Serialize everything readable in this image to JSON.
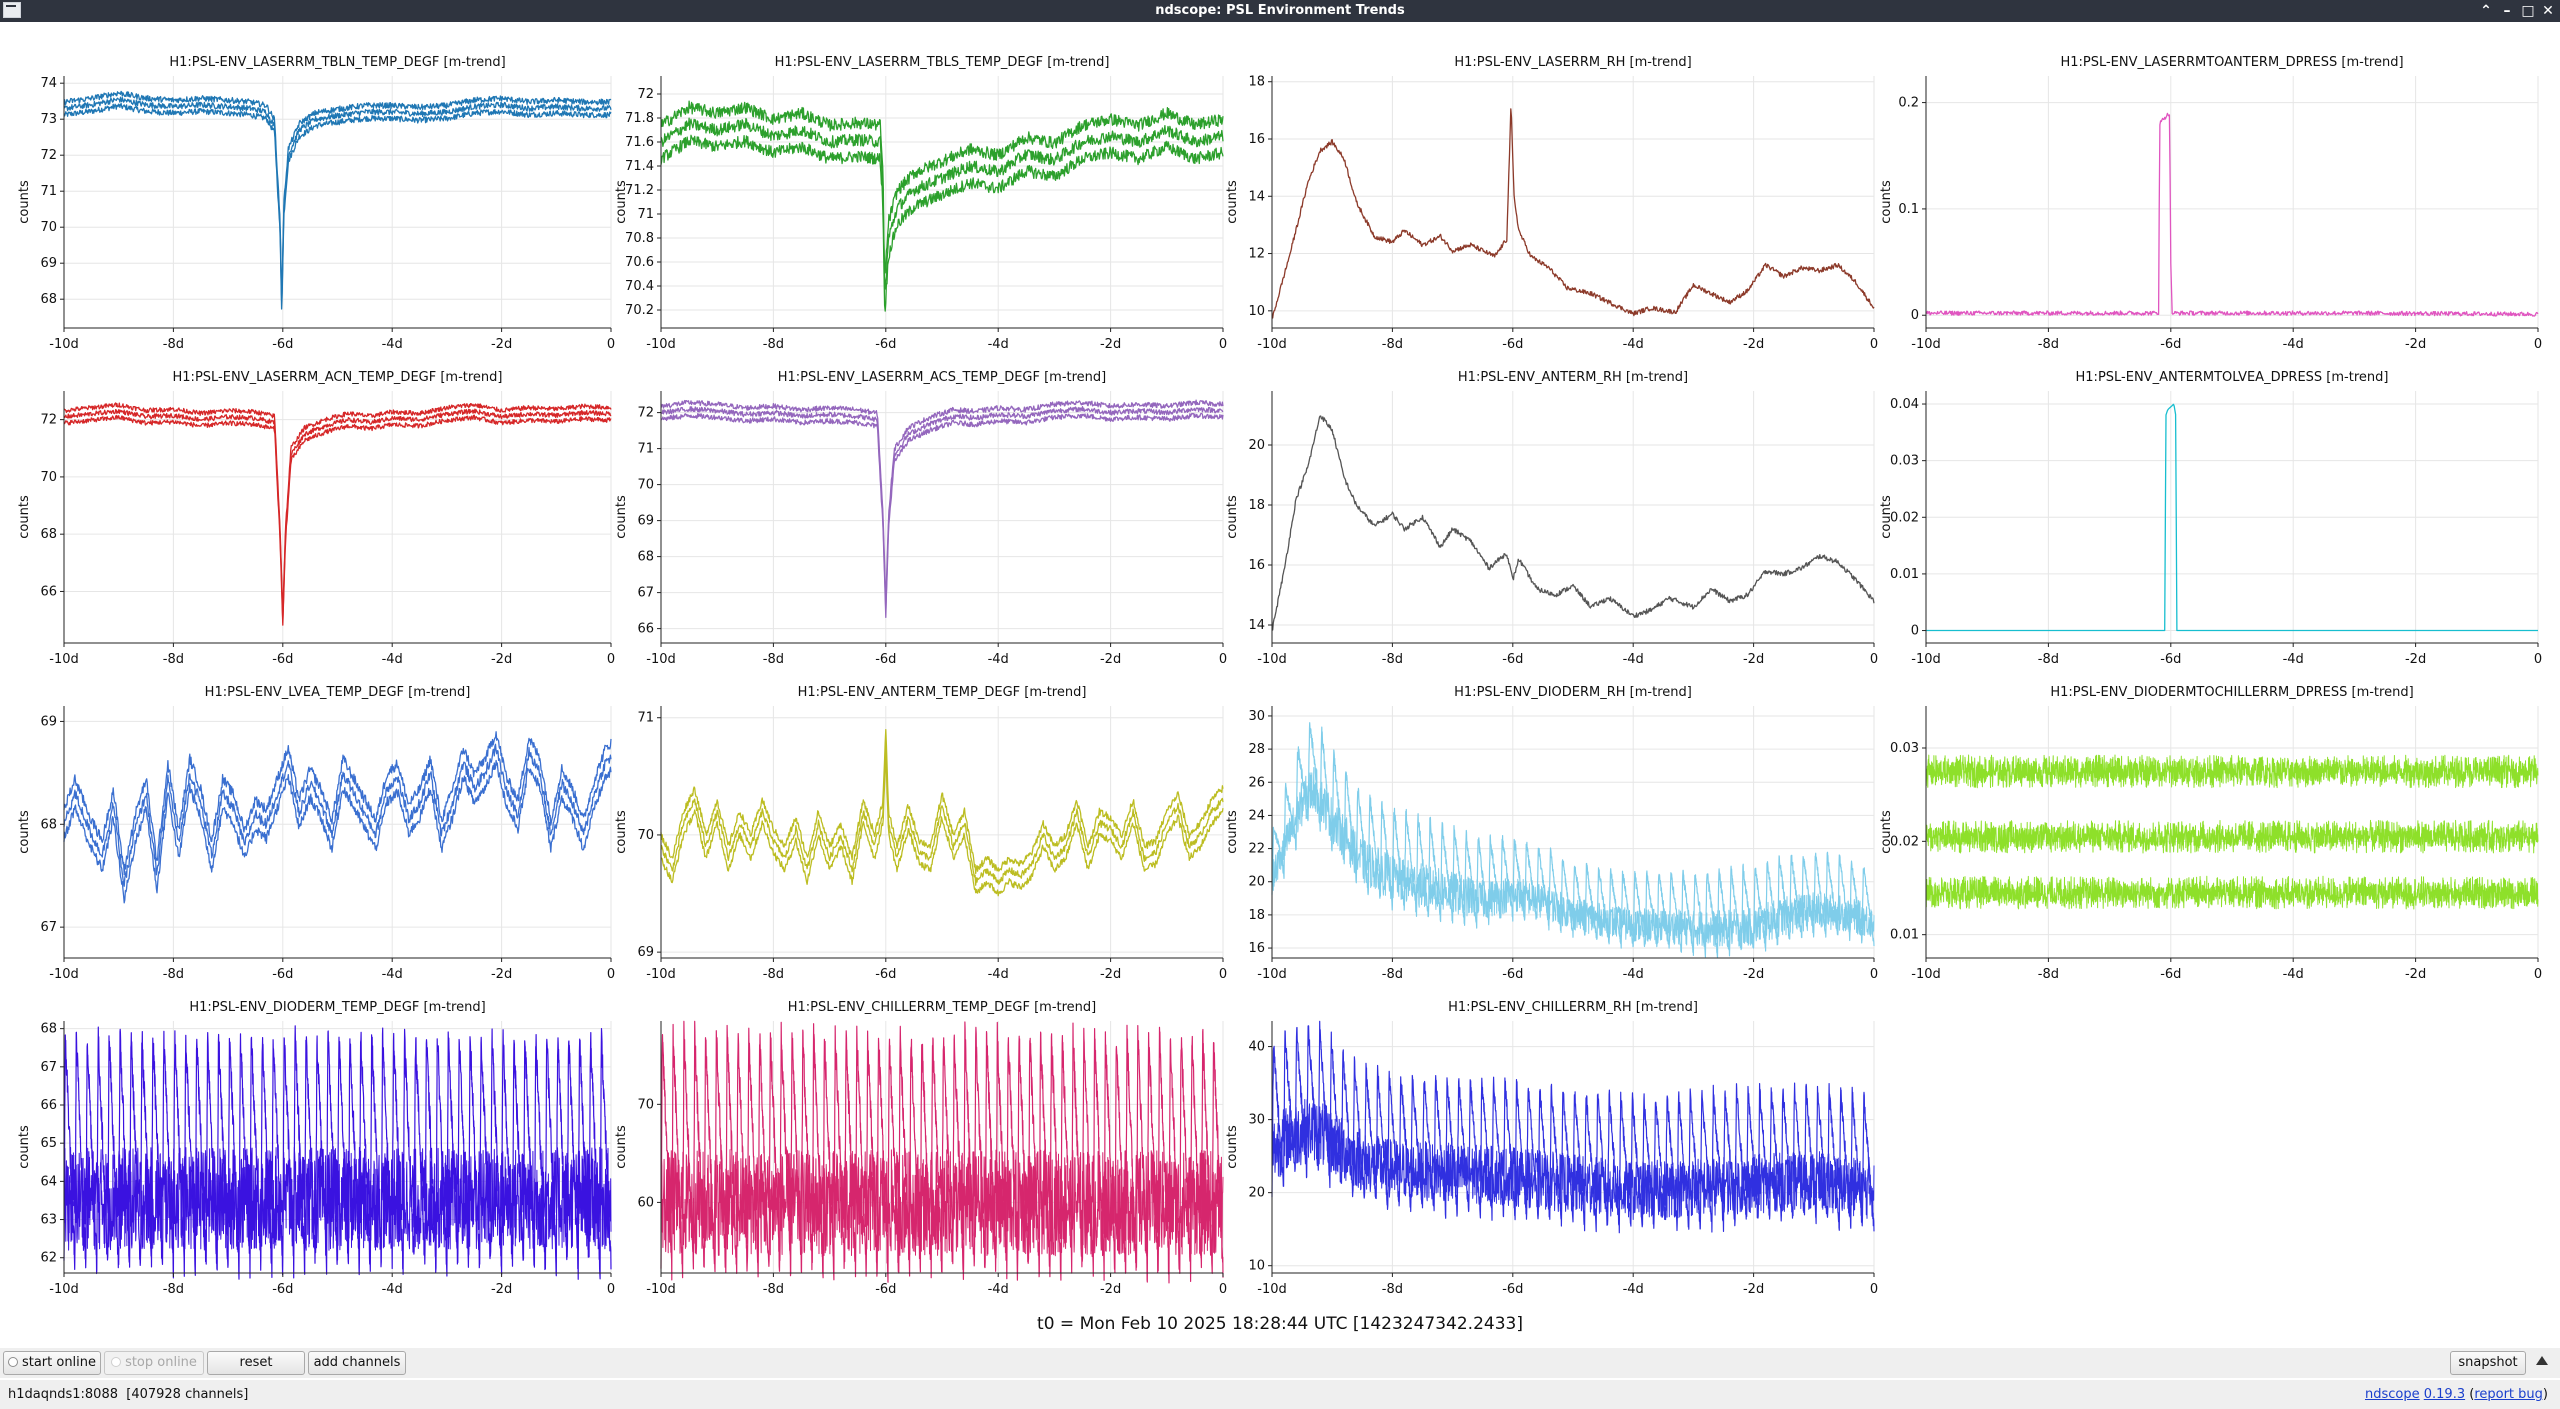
{
  "window": {
    "title": "ndscope: PSL Environment Trends"
  },
  "window_controls": {
    "menu": "⌃",
    "minimize": "–",
    "maximize": "□",
    "close": "✕"
  },
  "t0_label": "t0 = Mon Feb 10 2025 18:28:44 UTC [1423247342.2433]",
  "toolbar": {
    "start_online": "start online",
    "stop_online": "stop online",
    "reset": "reset",
    "add_channels": "add channels",
    "snapshot": "snapshot"
  },
  "status": {
    "server": "h1daqnds1:8088",
    "channels": "[407928 channels]",
    "app_name": "ndscope",
    "version": "0.19.3",
    "report_bug": "report bug",
    "open_paren": "(",
    "close_paren": ")"
  },
  "icons": {
    "app": "ndscope-window-icon",
    "toggle": "triangle-up-icon"
  },
  "chart_data": [
    {
      "type": "line",
      "title": "H1:PSL-ENV_LASERRM_TBLN_TEMP_DEGF [m-trend]",
      "ylabel": "counts",
      "color": "#1f77b4",
      "band": "triple",
      "ylim": [
        67.2,
        74.2
      ],
      "yticks": [
        68,
        69,
        70,
        71,
        72,
        73,
        74
      ],
      "xlim": [
        -10,
        0
      ],
      "x": [
        -10,
        -9.5,
        -9,
        -8.5,
        -8,
        -7.5,
        -7,
        -6.6,
        -6.3,
        -6.15,
        -6.05,
        -6.02,
        -5.98,
        -5.9,
        -5.7,
        -5.4,
        -5,
        -4.5,
        -4,
        -3.5,
        -3,
        -2.5,
        -2,
        -1.5,
        -1,
        -0.5,
        0
      ],
      "y": [
        73.3,
        73.4,
        73.55,
        73.4,
        73.35,
        73.4,
        73.35,
        73.3,
        73.2,
        72.8,
        70,
        67.8,
        70.5,
        72,
        72.7,
        73,
        73.1,
        73.2,
        73.2,
        73.15,
        73.2,
        73.35,
        73.4,
        73.3,
        73.35,
        73.3,
        73.3
      ],
      "noise": 0.08,
      "spread": 0.18
    },
    {
      "type": "line",
      "title": "H1:PSL-ENV_LASERRM_TBLS_TEMP_DEGF [m-trend]",
      "ylabel": "counts",
      "color": "#2ca02c",
      "band": "triple",
      "ylim": [
        70.05,
        72.15
      ],
      "yticks": [
        70.2,
        70.4,
        70.6,
        70.8,
        71,
        71.2,
        71.4,
        71.6,
        71.8,
        72
      ],
      "yformat": "trim",
      "xlim": [
        -10,
        0
      ],
      "x": [
        -10,
        -9.5,
        -9,
        -8.5,
        -8,
        -7.5,
        -7,
        -6.5,
        -6.1,
        -6.05,
        -6.02,
        -5.95,
        -5.8,
        -5.5,
        -5,
        -4.5,
        -4,
        -3.5,
        -3,
        -2.5,
        -2,
        -1.5,
        -1,
        -0.5,
        0
      ],
      "y": [
        71.6,
        71.75,
        71.7,
        71.75,
        71.65,
        71.7,
        71.6,
        71.62,
        71.6,
        71.2,
        70.3,
        70.8,
        71.05,
        71.2,
        71.3,
        71.4,
        71.35,
        71.5,
        71.45,
        71.6,
        71.65,
        71.6,
        71.7,
        71.6,
        71.65
      ],
      "noise": 0.05,
      "spread": 0.14
    },
    {
      "type": "line",
      "title": "H1:PSL-ENV_LASERRM_RH [m-trend]",
      "ylabel": "counts",
      "color": "#8c3a2a",
      "band": "single",
      "ylim": [
        9.4,
        18.2
      ],
      "yticks": [
        10,
        12,
        14,
        16,
        18
      ],
      "xlim": [
        -10,
        0
      ],
      "x": [
        -10,
        -9.7,
        -9.4,
        -9.2,
        -9,
        -8.8,
        -8.6,
        -8.3,
        -8,
        -7.8,
        -7.5,
        -7.2,
        -7,
        -6.7,
        -6.3,
        -6.1,
        -6.03,
        -5.98,
        -5.9,
        -5.7,
        -5.4,
        -5.1,
        -4.7,
        -4.3,
        -4,
        -3.7,
        -3.3,
        -3,
        -2.7,
        -2.4,
        -2.1,
        -1.8,
        -1.5,
        -1.2,
        -0.9,
        -0.6,
        -0.3,
        0
      ],
      "y": [
        9.7,
        12,
        14.5,
        15.6,
        15.9,
        15.3,
        13.8,
        12.6,
        12.4,
        12.8,
        12.3,
        12.6,
        12.1,
        12.3,
        11.9,
        12.5,
        17.2,
        14,
        12.8,
        11.9,
        11.5,
        10.8,
        10.6,
        10.2,
        9.9,
        10.1,
        9.95,
        10.9,
        10.6,
        10.3,
        10.7,
        11.6,
        11.2,
        11.5,
        11.4,
        11.6,
        11,
        10.1
      ],
      "noise": 0.08,
      "spread": 0.1
    },
    {
      "type": "line",
      "title": "H1:PSL-ENV_LASERRMTOANTERM_DPRESS [m-trend]",
      "ylabel": "counts",
      "color": "#e055c0",
      "band": "single",
      "ylim": [
        -0.012,
        0.225
      ],
      "yticks": [
        0,
        0.1,
        0.2
      ],
      "xlim": [
        -10,
        0
      ],
      "x": [
        -10,
        -6.2,
        -6.18,
        -6.12,
        -6.02,
        -6.0,
        -5.98,
        -3,
        0
      ],
      "y": [
        0.002,
        0.002,
        0.18,
        0.185,
        0.19,
        0.05,
        0.002,
        0.002,
        0.001
      ],
      "noise": 0.002,
      "spread": 0.0
    },
    {
      "type": "line",
      "title": "H1:PSL-ENV_LASERRM_ACN_TEMP_DEGF [m-trend]",
      "ylabel": "counts",
      "color": "#d62728",
      "band": "triple",
      "ylim": [
        64.2,
        73
      ],
      "yticks": [
        66,
        68,
        70,
        72
      ],
      "xlim": [
        -10,
        0
      ],
      "x": [
        -10,
        -9.5,
        -9,
        -8.5,
        -8,
        -7.5,
        -7,
        -6.5,
        -6.15,
        -6.05,
        -6.0,
        -5.95,
        -5.85,
        -5.6,
        -5.2,
        -4.8,
        -4.4,
        -4,
        -3.5,
        -3,
        -2.5,
        -2,
        -1.5,
        -1,
        -0.5,
        0
      ],
      "y": [
        72.1,
        72.2,
        72.3,
        72.1,
        72.15,
        72,
        72.1,
        72.05,
        71.9,
        68,
        65,
        68,
        70.8,
        71.5,
        71.8,
        72,
        71.9,
        72.05,
        72,
        72.2,
        72.3,
        72.1,
        72.2,
        72.15,
        72.25,
        72.2
      ],
      "noise": 0.08,
      "spread": 0.22
    },
    {
      "type": "line",
      "title": "H1:PSL-ENV_LASERRM_ACS_TEMP_DEGF [m-trend]",
      "ylabel": "counts",
      "color": "#9467bd",
      "band": "triple",
      "ylim": [
        65.6,
        72.6
      ],
      "yticks": [
        66,
        67,
        68,
        69,
        70,
        71,
        72
      ],
      "xlim": [
        -10,
        0
      ],
      "x": [
        -10,
        -9.5,
        -9,
        -8.5,
        -8,
        -7.5,
        -7,
        -6.5,
        -6.15,
        -6.05,
        -6.0,
        -5.95,
        -5.85,
        -5.6,
        -5.2,
        -4.8,
        -4.4,
        -4,
        -3.5,
        -3,
        -2.5,
        -2,
        -1.5,
        -1,
        -0.5,
        0
      ],
      "y": [
        72,
        72.1,
        72.05,
        71.95,
        72,
        71.9,
        71.95,
        71.9,
        71.8,
        69,
        66.5,
        69,
        70.8,
        71.4,
        71.7,
        71.9,
        71.85,
        71.95,
        71.9,
        72.05,
        72.1,
        72,
        72.05,
        72,
        72.1,
        72.05
      ],
      "noise": 0.07,
      "spread": 0.18
    },
    {
      "type": "line",
      "title": "H1:PSL-ENV_ANTERM_RH [m-trend]",
      "ylabel": "counts",
      "color": "#555555",
      "band": "single",
      "ylim": [
        13.4,
        21.8
      ],
      "yticks": [
        14,
        16,
        18,
        20
      ],
      "xlim": [
        -10,
        0
      ],
      "x": [
        -10,
        -9.8,
        -9.6,
        -9.4,
        -9.2,
        -9,
        -8.8,
        -8.6,
        -8.3,
        -8,
        -7.8,
        -7.5,
        -7.2,
        -7,
        -6.7,
        -6.4,
        -6.1,
        -6,
        -5.9,
        -5.6,
        -5.3,
        -5,
        -4.7,
        -4.4,
        -4,
        -3.7,
        -3.4,
        -3,
        -2.7,
        -2.4,
        -2.1,
        -1.8,
        -1.5,
        -1.2,
        -0.9,
        -0.6,
        -0.3,
        0
      ],
      "y": [
        13.8,
        15.8,
        18.2,
        19.3,
        21,
        20.5,
        18.9,
        18,
        17.3,
        17.7,
        17.2,
        17.6,
        16.6,
        17.2,
        16.8,
        15.9,
        16.4,
        15.5,
        16.2,
        15.2,
        15,
        15.3,
        14.6,
        14.9,
        14.3,
        14.5,
        14.9,
        14.6,
        15.2,
        14.8,
        15,
        15.8,
        15.7,
        15.9,
        16.3,
        16.1,
        15.5,
        14.8
      ],
      "noise": 0.08,
      "spread": 0.12
    },
    {
      "type": "line",
      "title": "H1:PSL-ENV_ANTERMTOLVEA_DPRESS [m-trend]",
      "ylabel": "counts",
      "color": "#17becf",
      "band": "single",
      "ylim": [
        -0.0022,
        0.0423
      ],
      "yticks": [
        0,
        0.01,
        0.02,
        0.03,
        0.04
      ],
      "xlim": [
        -10,
        0
      ],
      "x": [
        -10,
        -6.1,
        -6.08,
        -6.05,
        -5.95,
        -5.92,
        -5.9,
        0
      ],
      "y": [
        0,
        0,
        0.038,
        0.039,
        0.04,
        0.038,
        0,
        0
      ],
      "noise": 0.0,
      "spread": 0.0
    },
    {
      "type": "line",
      "title": "H1:PSL-ENV_LVEA_TEMP_DEGF [m-trend]",
      "ylabel": "counts",
      "color": "#3a6fd0",
      "band": "triple",
      "ylim": [
        66.7,
        69.15
      ],
      "yticks": [
        67,
        68,
        69
      ],
      "xlim": [
        -10,
        0
      ],
      "x": [
        -10,
        -9.8,
        -9.5,
        -9.3,
        -9.1,
        -8.9,
        -8.7,
        -8.5,
        -8.3,
        -8.1,
        -7.9,
        -7.7,
        -7.5,
        -7.3,
        -7.1,
        -6.9,
        -6.7,
        -6.5,
        -6.3,
        -6.1,
        -5.9,
        -5.7,
        -5.5,
        -5.3,
        -5.1,
        -4.9,
        -4.7,
        -4.5,
        -4.3,
        -4.1,
        -3.9,
        -3.7,
        -3.5,
        -3.3,
        -3.1,
        -2.9,
        -2.7,
        -2.5,
        -2.3,
        -2.1,
        -1.9,
        -1.7,
        -1.5,
        -1.3,
        -1.1,
        -0.9,
        -0.7,
        -0.5,
        -0.3,
        -0.1,
        0
      ],
      "y": [
        68,
        68.3,
        67.9,
        67.7,
        68.2,
        67.4,
        67.95,
        68.3,
        67.5,
        68.45,
        67.8,
        68.5,
        68.2,
        67.7,
        68.3,
        68.15,
        67.8,
        68.1,
        68,
        68.3,
        68.6,
        68.1,
        68.4,
        68.2,
        67.9,
        68.5,
        68.3,
        68.1,
        67.9,
        68.35,
        68.45,
        68.05,
        68.2,
        68.5,
        67.9,
        68.2,
        68.6,
        68.35,
        68.5,
        68.75,
        68.3,
        68.1,
        68.7,
        68.5,
        67.9,
        68.4,
        68.2,
        67.9,
        68.3,
        68.6,
        68.65
      ],
      "noise": 0.05,
      "spread": 0.14
    },
    {
      "type": "line",
      "title": "H1:PSL-ENV_ANTERM_TEMP_DEGF [m-trend]",
      "ylabel": "counts",
      "color": "#bcbd22",
      "band": "triple",
      "ylim": [
        68.95,
        71.1
      ],
      "yticks": [
        69,
        70,
        71
      ],
      "xlim": [
        -10,
        0
      ],
      "x": [
        -10,
        -9.8,
        -9.6,
        -9.4,
        -9.2,
        -9,
        -8.8,
        -8.6,
        -8.4,
        -8.2,
        -8,
        -7.8,
        -7.6,
        -7.4,
        -7.2,
        -7,
        -6.8,
        -6.6,
        -6.4,
        -6.2,
        -6.05,
        -6.0,
        -5.95,
        -5.8,
        -5.6,
        -5.4,
        -5.2,
        -5,
        -4.8,
        -4.6,
        -4.4,
        -4.2,
        -4,
        -3.8,
        -3.6,
        -3.4,
        -3.2,
        -3,
        -2.8,
        -2.6,
        -2.4,
        -2.2,
        -2,
        -1.8,
        -1.6,
        -1.4,
        -1.2,
        -1,
        -0.8,
        -0.6,
        -0.4,
        -0.2,
        0
      ],
      "y": [
        69.9,
        69.7,
        70.1,
        70.3,
        69.9,
        70.2,
        69.8,
        70.1,
        69.9,
        70.2,
        69.95,
        69.8,
        70.05,
        69.7,
        70.1,
        69.8,
        70,
        69.7,
        70.2,
        69.9,
        70.2,
        70.8,
        70.1,
        69.8,
        70.15,
        69.85,
        69.8,
        70.25,
        69.9,
        70.1,
        69.6,
        69.7,
        69.6,
        69.7,
        69.65,
        69.75,
        70,
        69.8,
        69.9,
        70.2,
        69.8,
        70.1,
        70.05,
        69.9,
        70.2,
        69.8,
        69.85,
        70.1,
        70.25,
        69.9,
        70.0,
        70.2,
        70.3
      ],
      "noise": 0.03,
      "spread": 0.1
    },
    {
      "type": "line",
      "title": "H1:PSL-ENV_DIODERM_RH [m-trend]",
      "ylabel": "counts",
      "color": "#7fcdea",
      "band": "saw",
      "ylim": [
        15.4,
        30.6
      ],
      "yticks": [
        16,
        18,
        20,
        22,
        24,
        26,
        28,
        30
      ],
      "xlim": [
        -10,
        0
      ],
      "x": [
        -10,
        -9.8,
        -9.5,
        -9.3,
        -9,
        -8.5,
        -8,
        -7.5,
        -7,
        -6.5,
        -6,
        -5.5,
        -5,
        -4.5,
        -4,
        -3.5,
        -3,
        -2.5,
        -2,
        -1.5,
        -1,
        -0.5,
        0
      ],
      "y": [
        21,
        23,
        26,
        27,
        25,
        22.5,
        21.5,
        21,
        20.5,
        20,
        20.3,
        19.8,
        19,
        18.6,
        18.3,
        18.3,
        18.2,
        18.2,
        18.4,
        19,
        19.3,
        19.1,
        18.5
      ],
      "amp": [
        2,
        2.5,
        3,
        3,
        3,
        3,
        3,
        3,
        2.8,
        2.6,
        2.4,
        2.3,
        2.2,
        2.2,
        2.2,
        2.3,
        2.4,
        2.5,
        2.6,
        2.6,
        2.5,
        2.4,
        2.2
      ],
      "cycles": 50
    },
    {
      "type": "line",
      "title": "H1:PSL-ENV_DIODERMTOCHILLERRM_DPRESS [m-trend]",
      "ylabel": "counts",
      "color": "#8ee02a",
      "band": "dense",
      "ylim": [
        0.0075,
        0.0345
      ],
      "yticks": [
        0.01,
        0.02,
        0.03
      ],
      "xlim": [
        -10,
        0
      ],
      "x": [
        -10,
        0
      ],
      "y": [
        0.0205,
        0.0205
      ],
      "levels": [
        0.0145,
        0.0205,
        0.0275
      ],
      "noise": 0.0035
    },
    {
      "type": "line",
      "title": "H1:PSL-ENV_DIODERM_TEMP_DEGF [m-trend]",
      "ylabel": "counts",
      "color": "#3a12e0",
      "band": "saw",
      "ylim": [
        61.6,
        68.2
      ],
      "yticks": [
        62,
        63,
        64,
        65,
        66,
        67,
        68
      ],
      "xlim": [
        -10,
        0
      ],
      "x": [
        -10,
        -5,
        0
      ],
      "y": [
        64.8,
        64.8,
        64.8
      ],
      "amp": [
        3,
        3,
        3
      ],
      "cycles": 50
    },
    {
      "type": "line",
      "title": "H1:PSL-ENV_CHILLERRM_TEMP_DEGF [m-trend]",
      "ylabel": "counts",
      "color": "#d6266d",
      "band": "saw",
      "ylim": [
        52.8,
        78.5
      ],
      "yticks": [
        60,
        70
      ],
      "xlim": [
        -10,
        0
      ],
      "x": [
        -10,
        -5,
        0
      ],
      "y": [
        65,
        65,
        65
      ],
      "amp": [
        12,
        12,
        12
      ],
      "cycles": 52
    },
    {
      "type": "line",
      "title": "H1:PSL-ENV_CHILLERRM_RH [m-trend]",
      "ylabel": "counts",
      "color": "#3030e0",
      "band": "saw",
      "ylim": [
        9,
        43.5
      ],
      "yticks": [
        10,
        20,
        30,
        40
      ],
      "xlim": [
        -10,
        0
      ],
      "x": [
        -10,
        -9.7,
        -9.3,
        -9,
        -8.5,
        -8,
        -7,
        -6,
        -5,
        -4,
        -3,
        -2,
        -1,
        0
      ],
      "y": [
        30,
        32,
        33,
        31,
        28,
        27,
        26.5,
        26,
        25,
        24,
        24.5,
        25,
        25.5,
        24
      ],
      "amp": [
        10,
        10,
        10,
        10,
        9,
        9,
        9,
        9,
        9,
        9,
        9,
        9,
        9,
        9
      ],
      "cycles": 52
    }
  ],
  "x_axis": {
    "ticks": [
      -10,
      -8,
      -6,
      -4,
      -2,
      0
    ],
    "labels": [
      "-10d",
      "-8d",
      "-6d",
      "-4d",
      "-2d",
      "0"
    ]
  }
}
